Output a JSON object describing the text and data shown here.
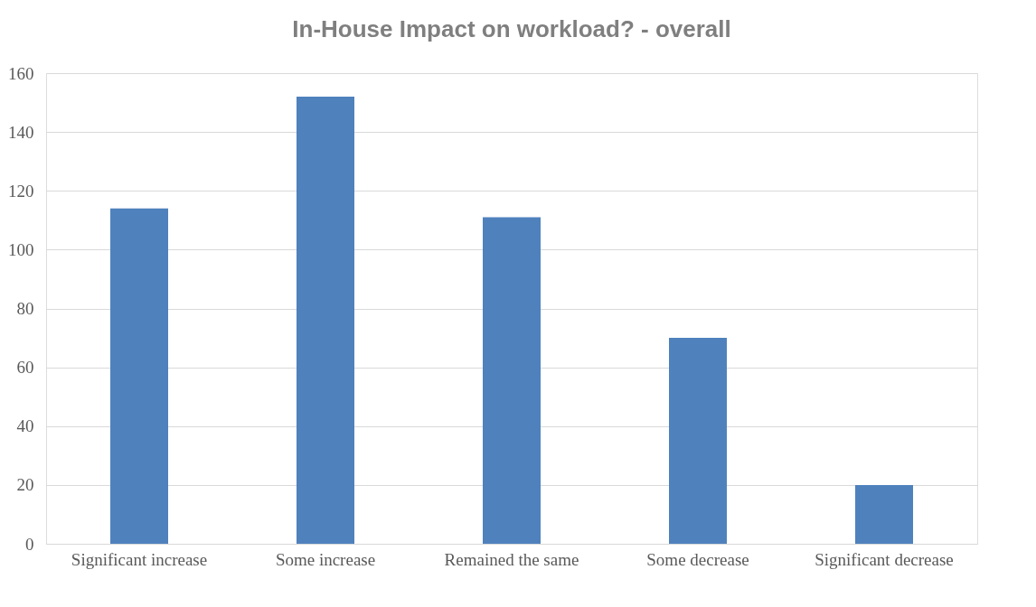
{
  "chart_data": {
    "type": "bar",
    "title": "In-House Impact on workload? - overall",
    "categories": [
      "Significant increase",
      "Some increase",
      "Remained the same",
      "Some decrease",
      "Significant decrease"
    ],
    "values": [
      114,
      152,
      111,
      70,
      20
    ],
    "color": "#4f81bd",
    "ylim": [
      0,
      160
    ],
    "yticks": [
      0,
      20,
      40,
      60,
      80,
      100,
      120,
      140,
      160
    ],
    "grid": "y"
  }
}
